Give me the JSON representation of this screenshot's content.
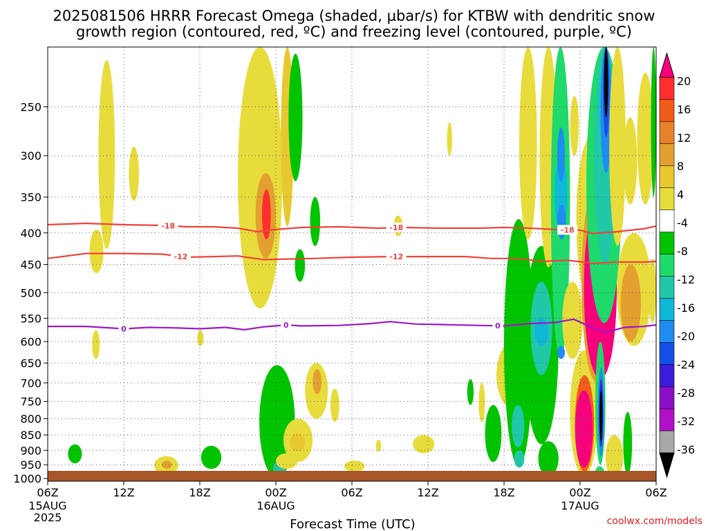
{
  "title_line1": "2025081506 HRRR Forecast Omega (shaded, µbar/s) for KTBW with dendritic snow",
  "title_line2": "growth region (contoured, red, ºC) and freezing level (contoured, purple, ºC)",
  "credit": "coolwx.com/models",
  "colors": {
    "dgz_contour": "#f0423a",
    "freezing_contour": "#9b18c8",
    "ground": "#a65628",
    "grid": "#555555"
  },
  "chart_data": {
    "type": "heatmap",
    "xlabel": "Forecast Time (UTC)",
    "ylabel": "",
    "x_range_hours": [
      0,
      48
    ],
    "y_range_hPa": [
      1010,
      200
    ],
    "y_scale": "log",
    "grid": true,
    "x_ticks": [
      {
        "hour": 0,
        "line1": "06Z",
        "line2": "15AUG",
        "line3": "2025"
      },
      {
        "hour": 6,
        "line1": "12Z",
        "line2": "",
        "line3": ""
      },
      {
        "hour": 12,
        "line1": "18Z",
        "line2": "",
        "line3": ""
      },
      {
        "hour": 18,
        "line1": "00Z",
        "line2": "16AUG",
        "line3": ""
      },
      {
        "hour": 24,
        "line1": "06Z",
        "line2": "",
        "line3": ""
      },
      {
        "hour": 30,
        "line1": "12Z",
        "line2": "",
        "line3": ""
      },
      {
        "hour": 36,
        "line1": "18Z",
        "line2": "",
        "line3": ""
      },
      {
        "hour": 42,
        "line1": "00Z",
        "line2": "17AUG",
        "line3": ""
      },
      {
        "hour": 48,
        "line1": "06Z",
        "line2": "",
        "line3": ""
      }
    ],
    "y_ticks": [
      250,
      300,
      350,
      400,
      450,
      500,
      550,
      600,
      650,
      700,
      750,
      800,
      850,
      900,
      950,
      1000
    ],
    "colorbar": {
      "labels": [
        "20",
        "16",
        "12",
        "8",
        "4",
        "-4",
        "-8",
        "-12",
        "-16",
        "-20",
        "-24",
        "-28",
        "-32",
        "-36"
      ],
      "colors": [
        "#f7007c",
        "#ff2e2e",
        "#f25c1a",
        "#e8822a",
        "#e3a030",
        "#e8c830",
        "#e8dc3c",
        "#ffffff",
        "#00c400",
        "#1fd96a",
        "#20c8a8",
        "#10b8d8",
        "#1e8cf0",
        "#1450e8",
        "#3a1ed8",
        "#8a10c8",
        "#b010c8",
        "#a8a8a8",
        "#000000"
      ]
    },
    "contours": [
      {
        "label": "-18",
        "label_hours": [
          9.5,
          27.5,
          41.0
        ],
        "points": [
          [
            0,
            388
          ],
          [
            3,
            386
          ],
          [
            6,
            388
          ],
          [
            9,
            389
          ],
          [
            11,
            391
          ],
          [
            13,
            391
          ],
          [
            15,
            393
          ],
          [
            16.5,
            398
          ],
          [
            18,
            395
          ],
          [
            20,
            392
          ],
          [
            23,
            391
          ],
          [
            26,
            393
          ],
          [
            28,
            392
          ],
          [
            31,
            393
          ],
          [
            34,
            393
          ],
          [
            36,
            392
          ],
          [
            38,
            393
          ],
          [
            40,
            395
          ],
          [
            42,
            396
          ],
          [
            43,
            401
          ],
          [
            45,
            398
          ],
          [
            47,
            394
          ],
          [
            48,
            390
          ]
        ]
      },
      {
        "label": "-12",
        "label_hours": [
          10.5,
          27.5
        ],
        "points": [
          [
            0,
            440
          ],
          [
            3,
            432
          ],
          [
            6,
            432
          ],
          [
            9,
            433
          ],
          [
            11,
            438
          ],
          [
            13,
            437
          ],
          [
            15,
            436
          ],
          [
            17,
            442
          ],
          [
            19,
            441
          ],
          [
            21,
            440
          ],
          [
            24,
            438
          ],
          [
            27,
            437
          ],
          [
            30,
            437
          ],
          [
            33,
            437
          ],
          [
            35,
            440
          ],
          [
            37,
            440
          ],
          [
            39,
            445
          ],
          [
            41,
            443
          ],
          [
            43,
            448
          ],
          [
            45,
            446
          ],
          [
            47,
            446
          ],
          [
            48,
            445
          ]
        ]
      },
      {
        "label": "0",
        "label_hours": [
          6.0,
          18.8,
          35.5
        ],
        "points": [
          [
            0,
            567
          ],
          [
            3,
            567
          ],
          [
            6,
            572
          ],
          [
            8,
            569
          ],
          [
            10,
            570
          ],
          [
            12,
            572
          ],
          [
            14,
            569
          ],
          [
            15.5,
            574
          ],
          [
            17,
            568
          ],
          [
            18.8,
            564
          ],
          [
            20,
            566
          ],
          [
            23,
            565
          ],
          [
            25.5,
            561
          ],
          [
            27,
            557
          ],
          [
            29,
            562
          ],
          [
            31,
            563
          ],
          [
            34,
            565
          ],
          [
            36,
            566
          ],
          [
            38,
            561
          ],
          [
            40,
            559
          ],
          [
            41.5,
            552
          ],
          [
            43,
            570
          ],
          [
            44,
            580
          ],
          [
            45.5,
            569
          ],
          [
            47,
            567
          ],
          [
            48,
            564
          ]
        ]
      }
    ],
    "omega_regions": [
      {
        "h0": 4.0,
        "h1": 5.3,
        "p0": 425,
        "p1": 210,
        "value": 5
      },
      {
        "h0": 6.4,
        "h1": 7.2,
        "p0": 355,
        "p1": 290,
        "value": 5
      },
      {
        "h0": 1.6,
        "h1": 2.7,
        "p0": 945,
        "p1": 880,
        "value": -6
      },
      {
        "h0": 3.3,
        "h1": 4.4,
        "p0": 465,
        "p1": 395,
        "value": 5
      },
      {
        "h0": 3.5,
        "h1": 4.1,
        "p0": 640,
        "p1": 575,
        "value": 5
      },
      {
        "h0": 8.4,
        "h1": 10.3,
        "p0": 985,
        "p1": 920,
        "value": 6
      },
      {
        "h0": 9.0,
        "h1": 9.8,
        "p0": 965,
        "p1": 935,
        "value": 10
      },
      {
        "h0": 11.8,
        "h1": 12.3,
        "p0": 610,
        "p1": 575,
        "value": 5
      },
      {
        "h0": 12.1,
        "h1": 13.7,
        "p0": 965,
        "p1": 885,
        "value": -6
      },
      {
        "h0": 15.0,
        "h1": 18.5,
        "p0": 530,
        "p1": 200,
        "value": 5
      },
      {
        "h0": 16.4,
        "h1": 18.0,
        "p0": 440,
        "p1": 320,
        "value": 10
      },
      {
        "h0": 16.9,
        "h1": 17.6,
        "p0": 410,
        "p1": 340,
        "value": 16
      },
      {
        "h0": 18.4,
        "h1": 19.4,
        "p0": 390,
        "p1": 200,
        "value": 9
      },
      {
        "h0": 19.0,
        "h1": 20.1,
        "p0": 330,
        "p1": 205,
        "value": -6
      },
      {
        "h0": 19.5,
        "h1": 20.3,
        "p0": 480,
        "p1": 425,
        "value": -6
      },
      {
        "h0": 20.7,
        "h1": 21.5,
        "p0": 420,
        "p1": 350,
        "value": -6
      },
      {
        "h0": 20.3,
        "h1": 22.1,
        "p0": 800,
        "p1": 650,
        "value": 5
      },
      {
        "h0": 20.9,
        "h1": 21.6,
        "p0": 730,
        "p1": 665,
        "value": 10
      },
      {
        "h0": 16.7,
        "h1": 19.5,
        "p0": 1000,
        "p1": 655,
        "value": -6
      },
      {
        "h0": 17.8,
        "h1": 18.8,
        "p0": 990,
        "p1": 935,
        "value": -12
      },
      {
        "h0": 18.6,
        "h1": 20.9,
        "p0": 940,
        "p1": 800,
        "value": 5
      },
      {
        "h0": 19.1,
        "h1": 20.3,
        "p0": 905,
        "p1": 845,
        "value": 9
      },
      {
        "h0": 18.0,
        "h1": 19.7,
        "p0": 965,
        "p1": 910,
        "value": 6
      },
      {
        "h0": 22.3,
        "h1": 23.0,
        "p0": 810,
        "p1": 715,
        "value": 5
      },
      {
        "h0": 23.4,
        "h1": 25.0,
        "p0": 975,
        "p1": 935,
        "value": 5
      },
      {
        "h0": 25.9,
        "h1": 26.3,
        "p0": 905,
        "p1": 865,
        "value": 5
      },
      {
        "h0": 27.3,
        "h1": 28.0,
        "p0": 405,
        "p1": 375,
        "value": 5
      },
      {
        "h0": 28.8,
        "h1": 30.5,
        "p0": 910,
        "p1": 850,
        "value": 6
      },
      {
        "h0": 31.5,
        "h1": 31.9,
        "p0": 300,
        "p1": 265,
        "value": 5
      },
      {
        "h0": 33.1,
        "h1": 33.6,
        "p0": 760,
        "p1": 690,
        "value": -6
      },
      {
        "h0": 34.0,
        "h1": 34.5,
        "p0": 810,
        "p1": 700,
        "value": 5
      },
      {
        "h0": 34.5,
        "h1": 35.8,
        "p0": 940,
        "p1": 760,
        "value": -6
      },
      {
        "h0": 35.4,
        "h1": 38.0,
        "p0": 770,
        "p1": 600,
        "value": 5
      },
      {
        "h0": 36.2,
        "h1": 37.2,
        "p0": 705,
        "p1": 640,
        "value": 10
      },
      {
        "h0": 36.0,
        "h1": 38.3,
        "p0": 955,
        "p1": 380,
        "value": -7
      },
      {
        "h0": 36.6,
        "h1": 37.6,
        "p0": 890,
        "p1": 760,
        "value": -12
      },
      {
        "h0": 36.8,
        "h1": 37.6,
        "p0": 960,
        "p1": 900,
        "value": -13
      },
      {
        "h0": 37.6,
        "h1": 40.3,
        "p0": 880,
        "p1": 420,
        "value": -7
      },
      {
        "h0": 38.1,
        "h1": 39.8,
        "p0": 680,
        "p1": 480,
        "value": -13
      },
      {
        "h0": 38.4,
        "h1": 39.5,
        "p0": 610,
        "p1": 550,
        "value": -18
      },
      {
        "h0": 38.7,
        "h1": 40.3,
        "p0": 990,
        "p1": 870,
        "value": -6
      },
      {
        "h0": 37.2,
        "h1": 38.6,
        "p0": 410,
        "p1": 200,
        "value": 5
      },
      {
        "h0": 38.8,
        "h1": 40.2,
        "p0": 455,
        "p1": 200,
        "value": 5
      },
      {
        "h0": 39.7,
        "h1": 41.2,
        "p0": 640,
        "p1": 200,
        "value": -8
      },
      {
        "h0": 40.0,
        "h1": 41.0,
        "p0": 400,
        "p1": 300,
        "value": -17
      },
      {
        "h0": 40.2,
        "h1": 40.8,
        "p0": 330,
        "p1": 270,
        "value": -22
      },
      {
        "h0": 40.2,
        "h1": 40.9,
        "p0": 410,
        "p1": 360,
        "value": -22
      },
      {
        "h0": 40.2,
        "h1": 40.8,
        "p0": 640,
        "p1": 610,
        "value": -22
      },
      {
        "h0": 40.6,
        "h1": 42.2,
        "p0": 640,
        "p1": 480,
        "value": 5
      },
      {
        "h0": 41.2,
        "h1": 41.9,
        "p0": 300,
        "p1": 240,
        "value": 5
      },
      {
        "h0": 41.2,
        "h1": 43.4,
        "p0": 990,
        "p1": 620,
        "value": 6
      },
      {
        "h0": 41.6,
        "h1": 43.1,
        "p0": 975,
        "p1": 680,
        "value": 14
      },
      {
        "h0": 41.6,
        "h1": 43.0,
        "p0": 960,
        "p1": 720,
        "value": 20
      },
      {
        "h0": 41.7,
        "h1": 44.0,
        "p0": 520,
        "p1": 280,
        "value": 6
      },
      {
        "h0": 42.1,
        "h1": 44.6,
        "p0": 700,
        "p1": 330,
        "value": 10
      },
      {
        "h0": 42.3,
        "h1": 44.9,
        "p0": 690,
        "p1": 350,
        "value": 20
      },
      {
        "h0": 42.5,
        "h1": 45.3,
        "p0": 560,
        "p1": 200,
        "value": -8
      },
      {
        "h0": 43.1,
        "h1": 44.8,
        "p0": 450,
        "p1": 200,
        "value": -14
      },
      {
        "h0": 43.6,
        "h1": 44.5,
        "p0": 320,
        "p1": 200,
        "value": -20
      },
      {
        "h0": 43.8,
        "h1": 44.3,
        "p0": 280,
        "p1": 200,
        "value": -26
      },
      {
        "h0": 43.9,
        "h1": 44.2,
        "p0": 260,
        "p1": 200,
        "value": -40
      },
      {
        "h0": 43.2,
        "h1": 44.0,
        "p0": 950,
        "p1": 600,
        "value": -8
      },
      {
        "h0": 43.4,
        "h1": 43.9,
        "p0": 920,
        "p1": 660,
        "value": -22
      },
      {
        "h0": 43.5,
        "h1": 43.8,
        "p0": 890,
        "p1": 690,
        "value": -28
      },
      {
        "h0": 43.55,
        "h1": 43.75,
        "p0": 870,
        "p1": 720,
        "value": -40
      },
      {
        "h0": 43.2,
        "h1": 43.9,
        "p0": 1000,
        "p1": 955,
        "value": -8
      },
      {
        "h0": 44.0,
        "h1": 45.4,
        "p0": 1000,
        "p1": 850,
        "value": 5
      },
      {
        "h0": 44.9,
        "h1": 47.6,
        "p0": 610,
        "p1": 400,
        "value": 6
      },
      {
        "h0": 45.2,
        "h1": 46.8,
        "p0": 600,
        "p1": 450,
        "value": 10
      },
      {
        "h0": 44.3,
        "h1": 45.6,
        "p0": 420,
        "p1": 200,
        "value": 5
      },
      {
        "h0": 45.4,
        "h1": 46.5,
        "p0": 360,
        "p1": 260,
        "value": 5
      },
      {
        "h0": 46.5,
        "h1": 47.8,
        "p0": 360,
        "p1": 220,
        "value": 5
      },
      {
        "h0": 45.4,
        "h1": 46.1,
        "p0": 985,
        "p1": 780,
        "value": -7
      },
      {
        "h0": 47.4,
        "h1": 48.0,
        "p0": 560,
        "p1": 440,
        "value": 5
      },
      {
        "h0": 47.6,
        "h1": 48.0,
        "p0": 350,
        "p1": 200,
        "value": -6
      }
    ]
  }
}
